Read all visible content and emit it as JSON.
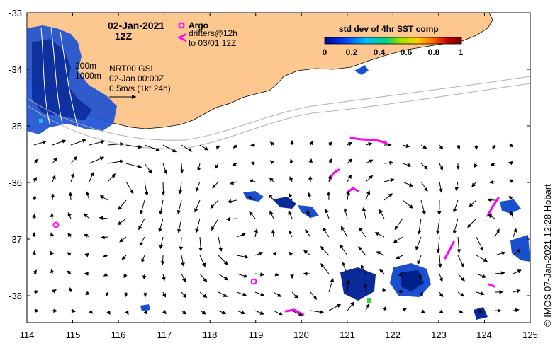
{
  "map": {
    "date": "02-Jan-2021",
    "hour": "12Z",
    "lon_ticks": [
      "114",
      "115",
      "116",
      "117",
      "118",
      "119",
      "120",
      "121",
      "122",
      "123",
      "124",
      "125"
    ],
    "lat_ticks": [
      "-33",
      "-34",
      "-35",
      "-36",
      "-37",
      "-38"
    ],
    "colorbar": {
      "title": "std dev of 4hr SST comp",
      "ticks": [
        "0",
        "0.2",
        "0.4",
        "0.6",
        "0.8",
        "1"
      ],
      "colors": [
        "#00008b",
        "#0040ff",
        "#00c0ff",
        "#00d080",
        "#a0e000",
        "#ffd000",
        "#ff6000",
        "#c00000",
        "#700000"
      ]
    },
    "legend": {
      "argo_label": "Argo",
      "drifters_line1": "drifters@12h",
      "drifters_line2": "to 03/01 12Z",
      "argo_color": "#ff00ff"
    },
    "isobaths": [
      "200m",
      "1000m"
    ],
    "product": "NRT00 GSL",
    "product_time": "02-Jan 00:00Z",
    "scale_label": "0.5m/s (1kt 24h)",
    "credit": "© IMOS 07-Jan-2021 12:28 Hobart",
    "land_color": "#fcc890"
  }
}
